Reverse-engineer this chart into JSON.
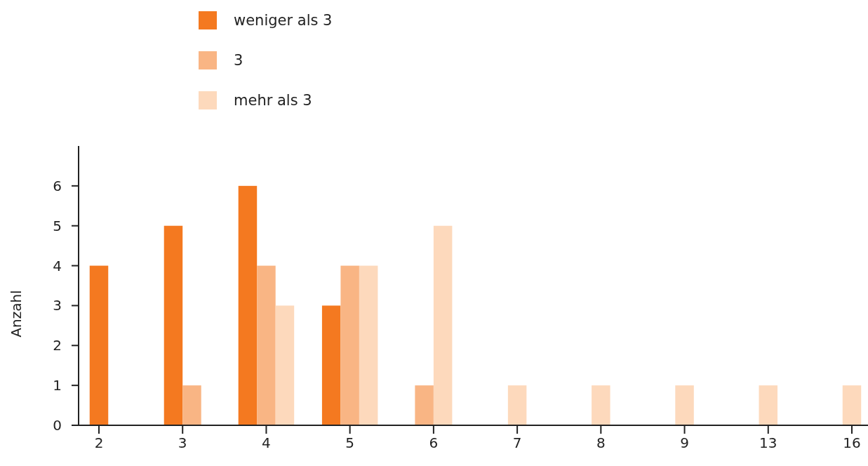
{
  "chart_data": {
    "type": "bar",
    "ylabel": "Anzahl",
    "categories": [
      "2",
      "3",
      "4",
      "5",
      "6",
      "7",
      "8",
      "9",
      "13",
      "16"
    ],
    "series": [
      {
        "name": "weniger als 3",
        "color": "#f47920",
        "values": [
          4,
          5,
          6,
          3,
          null,
          null,
          null,
          null,
          null,
          null
        ]
      },
      {
        "name": "3",
        "color": "#f9b584",
        "values": [
          null,
          1,
          4,
          4,
          1,
          null,
          null,
          null,
          null,
          null
        ]
      },
      {
        "name": "mehr als 3",
        "color": "#fdd9bc",
        "values": [
          null,
          null,
          3,
          4,
          5,
          1,
          1,
          1,
          1,
          1
        ]
      }
    ],
    "ylim": [
      0,
      7
    ],
    "yticks": [
      0,
      1,
      2,
      3,
      4,
      5,
      6
    ],
    "grid": false,
    "legend": "top"
  }
}
